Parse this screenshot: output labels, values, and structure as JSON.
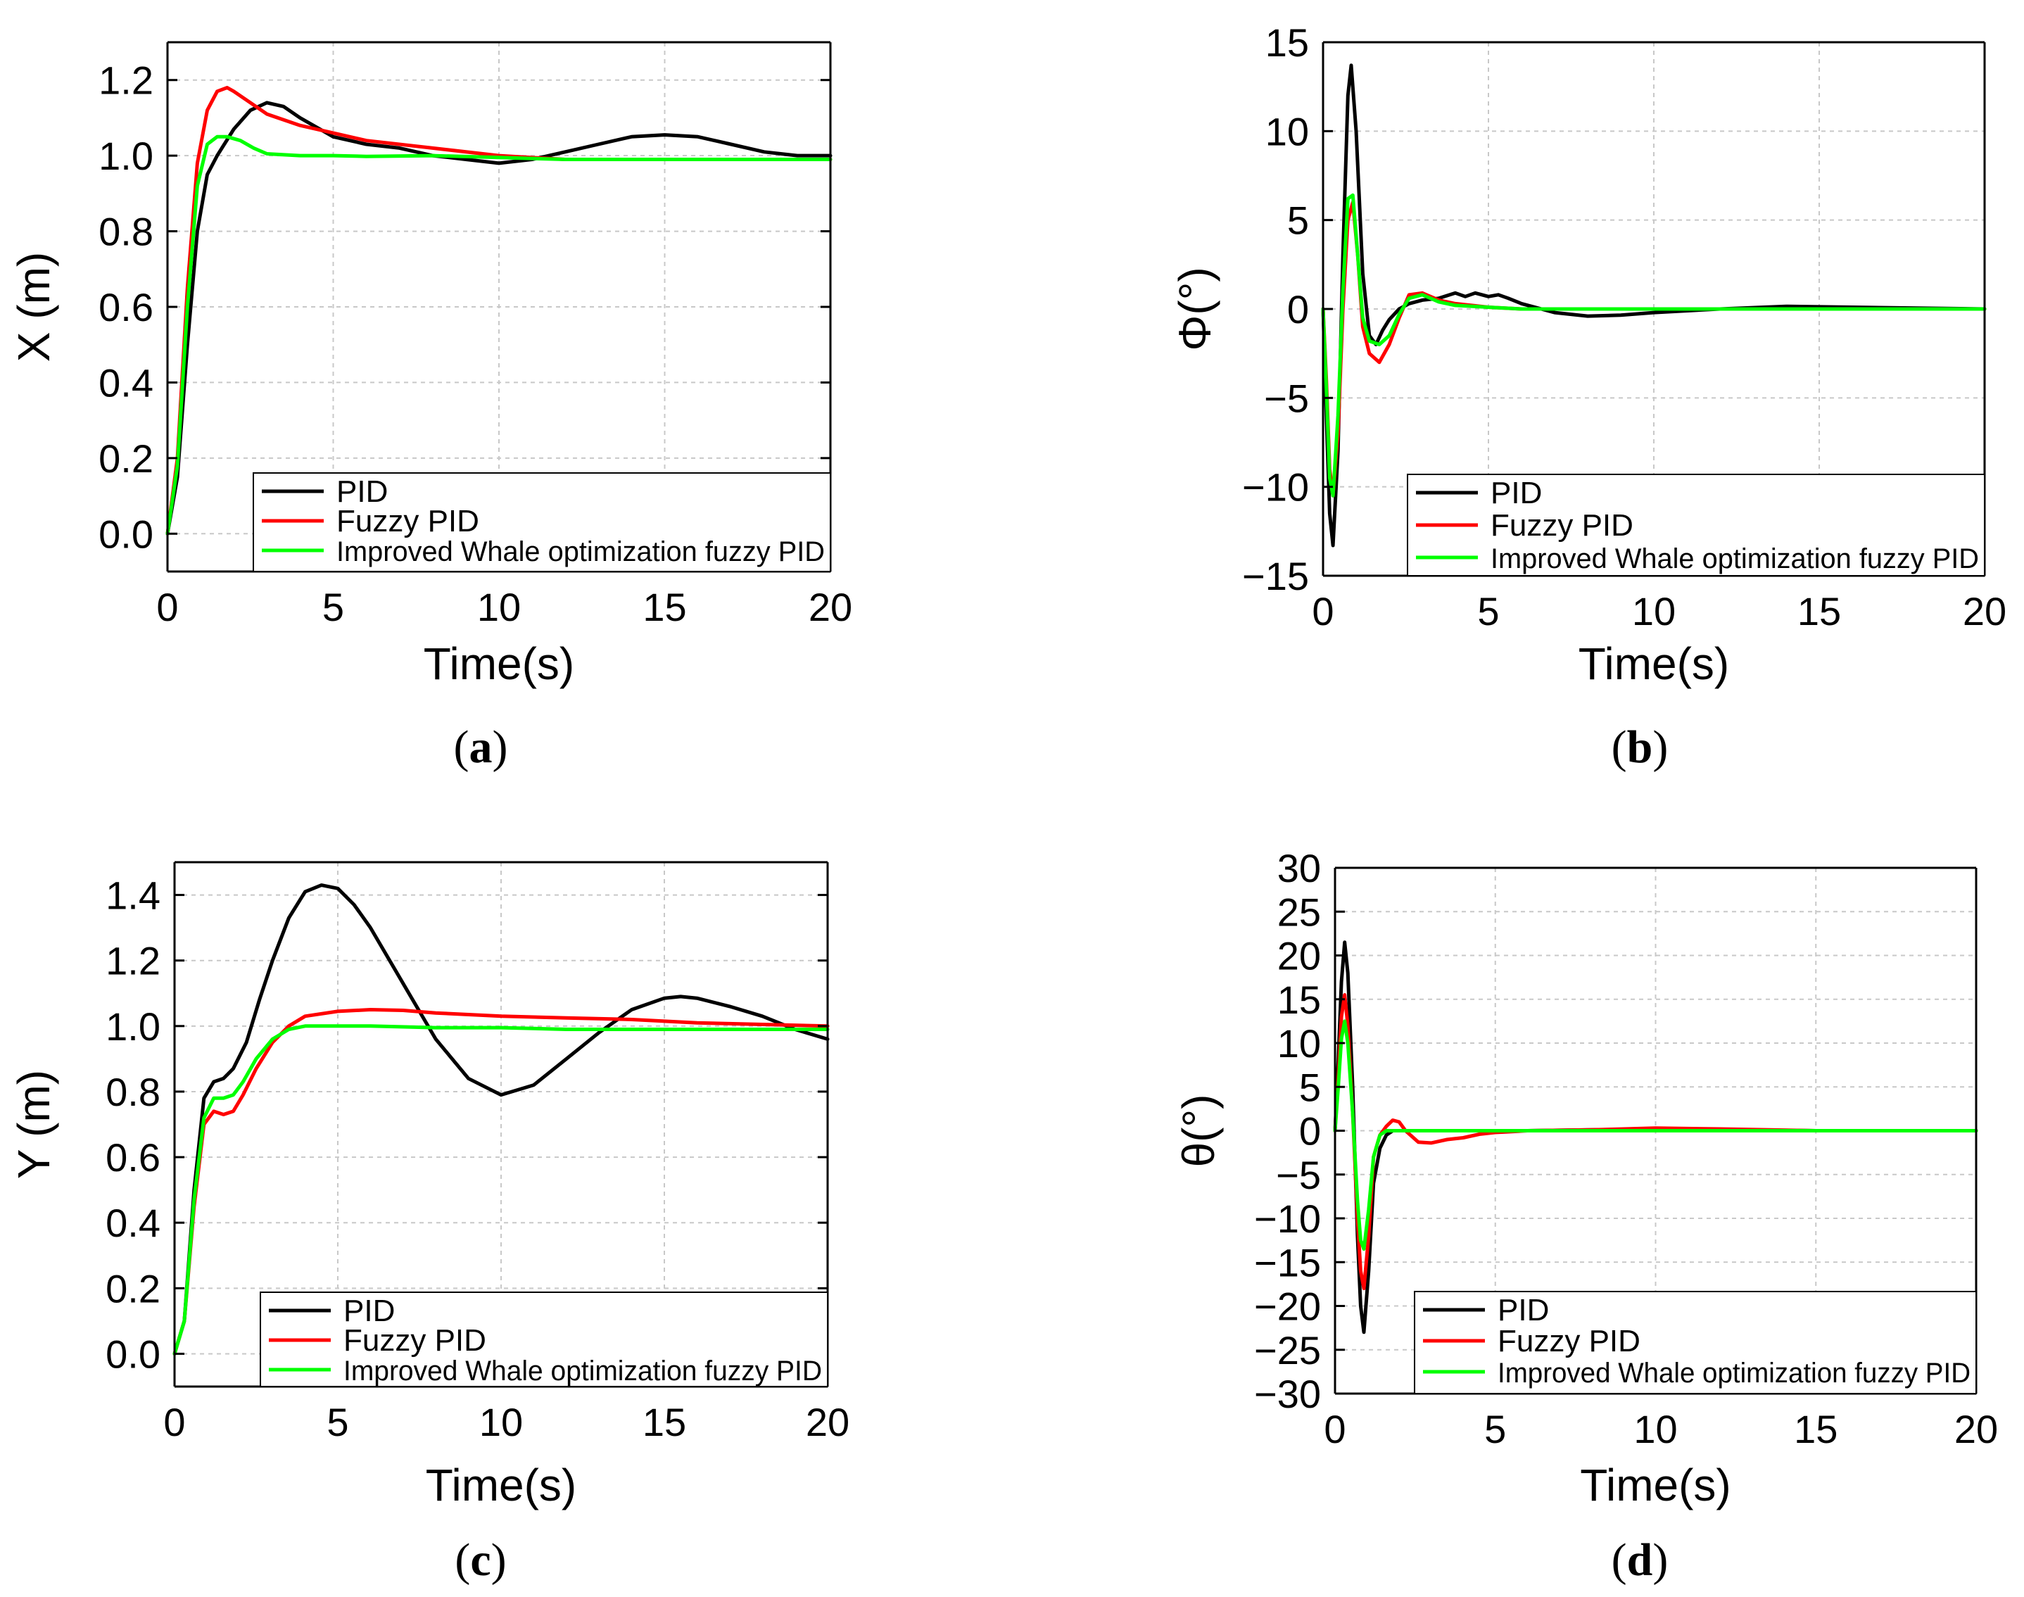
{
  "chart_data": [
    {
      "id": "a",
      "type": "line",
      "caption": {
        "open": "(",
        "letter": "a",
        "close": ")"
      },
      "xlabel": "Time(s)",
      "ylabel": "X (m)",
      "xlim": [
        0,
        20
      ],
      "ylim": [
        -0.1,
        1.3
      ],
      "xticks": [
        0,
        5,
        10,
        15,
        20
      ],
      "yticks": [
        0.0,
        0.2,
        0.4,
        0.6,
        0.8,
        1.0,
        1.2
      ],
      "ytick_labels": [
        "0.0",
        "0.2",
        "0.4",
        "0.6",
        "0.8",
        "1.0",
        "1.2"
      ],
      "xtick_labels": [
        "0",
        "5",
        "10",
        "15",
        "20"
      ],
      "grid": true,
      "legend": [
        "PID",
        "Fuzzy PID",
        "Improved Whale optimization fuzzy PID"
      ],
      "series": [
        {
          "name": "PID",
          "color": "#000000",
          "x": [
            0,
            0.3,
            0.6,
            0.9,
            1.2,
            1.5,
            2.0,
            2.5,
            3.0,
            3.5,
            4.0,
            5.0,
            6.0,
            7.0,
            8.0,
            9.0,
            10.0,
            11.0,
            12.0,
            13.0,
            14.0,
            15.0,
            16.0,
            17.0,
            18.0,
            19.0,
            20.0
          ],
          "y": [
            0.0,
            0.15,
            0.5,
            0.8,
            0.95,
            1.0,
            1.07,
            1.12,
            1.14,
            1.13,
            1.1,
            1.05,
            1.03,
            1.02,
            1.0,
            0.99,
            0.98,
            0.99,
            1.01,
            1.03,
            1.05,
            1.055,
            1.05,
            1.03,
            1.01,
            1.0,
            1.0
          ]
        },
        {
          "name": "Fuzzy PID",
          "color": "#ff0000",
          "x": [
            0,
            0.3,
            0.6,
            0.9,
            1.2,
            1.5,
            1.8,
            2.0,
            2.5,
            3.0,
            4.0,
            5.0,
            6.0,
            8.0,
            10.0,
            12.0,
            14.0,
            16.0,
            18.0,
            20.0
          ],
          "y": [
            0.0,
            0.2,
            0.65,
            0.98,
            1.12,
            1.17,
            1.18,
            1.17,
            1.14,
            1.11,
            1.08,
            1.06,
            1.04,
            1.02,
            1.0,
            0.99,
            0.99,
            0.99,
            0.99,
            0.99
          ]
        },
        {
          "name": "Improved Whale optimization fuzzy PID",
          "color": "#00ff00",
          "x": [
            0,
            0.3,
            0.6,
            0.9,
            1.2,
            1.5,
            1.8,
            2.2,
            2.6,
            3.0,
            4.0,
            5.0,
            6.0,
            8.0,
            10.0,
            12.0,
            14.0,
            16.0,
            18.0,
            20.0
          ],
          "y": [
            0.0,
            0.18,
            0.6,
            0.92,
            1.03,
            1.05,
            1.05,
            1.04,
            1.02,
            1.005,
            1.0,
            1.0,
            0.998,
            1.0,
            0.995,
            0.99,
            0.99,
            0.99,
            0.99,
            0.99
          ]
        }
      ]
    },
    {
      "id": "b",
      "type": "line",
      "caption": {
        "open": "(",
        "letter": "b",
        "close": ")"
      },
      "xlabel": "Time(s)",
      "ylabel": "Φ(°)",
      "xlim": [
        0,
        20
      ],
      "ylim": [
        -15,
        15
      ],
      "xticks": [
        0,
        5,
        10,
        15,
        20
      ],
      "yticks": [
        -15,
        -10,
        -5,
        0,
        5,
        10,
        15
      ],
      "ytick_labels": [
        "−15",
        "−10",
        "−5",
        "0",
        "5",
        "10",
        "15"
      ],
      "xtick_labels": [
        "0",
        "5",
        "10",
        "15",
        "20"
      ],
      "grid": true,
      "legend": [
        "PID",
        "Fuzzy PID",
        "Improved Whale optimization fuzzy PID"
      ],
      "series": [
        {
          "name": "PID",
          "color": "#000000",
          "x": [
            0,
            0.1,
            0.2,
            0.3,
            0.45,
            0.6,
            0.75,
            0.85,
            1.0,
            1.2,
            1.4,
            1.6,
            1.8,
            2.0,
            2.3,
            2.6,
            3.0,
            3.5,
            4.0,
            4.3,
            4.6,
            5.0,
            5.3,
            5.6,
            6.0,
            7.0,
            8.0,
            9.0,
            10.0,
            12.0,
            14.0,
            16.0,
            18.0,
            20.0
          ],
          "y": [
            0,
            -6,
            -11.5,
            -13.3,
            -8,
            3,
            12,
            13.7,
            10,
            2,
            -1.5,
            -2,
            -1.2,
            -0.6,
            0,
            0.3,
            0.5,
            0.6,
            0.9,
            0.7,
            0.9,
            0.7,
            0.8,
            0.6,
            0.3,
            -0.2,
            -0.4,
            -0.35,
            -0.2,
            0,
            0.15,
            0.1,
            0.05,
            0
          ]
        },
        {
          "name": "Fuzzy PID",
          "color": "#ff0000",
          "x": [
            0,
            0.1,
            0.2,
            0.3,
            0.45,
            0.6,
            0.75,
            0.9,
            1.05,
            1.2,
            1.4,
            1.7,
            2.0,
            2.3,
            2.6,
            3.0,
            3.5,
            4.0,
            5.0,
            6.0,
            8.0,
            10.0,
            15.0,
            20.0
          ],
          "y": [
            0,
            -4,
            -9,
            -10.5,
            -7,
            0,
            5,
            6,
            3,
            -1,
            -2.5,
            -3.0,
            -2,
            -0.5,
            0.8,
            0.9,
            0.5,
            0.3,
            0.1,
            0,
            0,
            0,
            0,
            0
          ]
        },
        {
          "name": "Improved Whale optimization fuzzy PID",
          "color": "#00ff00",
          "x": [
            0,
            0.1,
            0.2,
            0.3,
            0.45,
            0.6,
            0.75,
            0.9,
            1.05,
            1.2,
            1.4,
            1.7,
            2.0,
            2.3,
            2.6,
            3.0,
            3.5,
            4.0,
            5.0,
            6.0,
            8.0,
            10.0,
            15.0,
            20.0
          ],
          "y": [
            0,
            -4.5,
            -9.5,
            -10.5,
            -6,
            1,
            6.2,
            6.4,
            3,
            -0.5,
            -1.8,
            -2.0,
            -1.5,
            -0.3,
            0.6,
            0.8,
            0.4,
            0.2,
            0.1,
            0,
            0,
            0,
            0,
            0
          ]
        }
      ]
    },
    {
      "id": "c",
      "type": "line",
      "caption": {
        "open": "(",
        "letter": "c",
        "close": ")"
      },
      "xlabel": "Time(s)",
      "ylabel": "Y (m)",
      "xlim": [
        0,
        20
      ],
      "ylim": [
        -0.1,
        1.5
      ],
      "xticks": [
        0,
        5,
        10,
        15,
        20
      ],
      "yticks": [
        0.0,
        0.2,
        0.4,
        0.6,
        0.8,
        1.0,
        1.2,
        1.4
      ],
      "ytick_labels": [
        "0.0",
        "0.2",
        "0.4",
        "0.6",
        "0.8",
        "1.0",
        "1.2",
        "1.4"
      ],
      "xtick_labels": [
        "0",
        "5",
        "10",
        "15",
        "20"
      ],
      "grid": true,
      "legend": [
        "PID",
        "Fuzzy PID",
        "Improved Whale optimization fuzzy PID"
      ],
      "series": [
        {
          "name": "PID",
          "color": "#000000",
          "x": [
            0,
            0.3,
            0.6,
            0.9,
            1.2,
            1.5,
            1.8,
            2.2,
            2.6,
            3.0,
            3.5,
            4.0,
            4.5,
            5.0,
            5.5,
            6.0,
            7.0,
            8.0,
            9.0,
            10.0,
            11.0,
            12.0,
            13.0,
            14.0,
            15.0,
            15.5,
            16.0,
            17.0,
            18.0,
            19.0,
            20.0
          ],
          "y": [
            0.0,
            0.1,
            0.5,
            0.78,
            0.83,
            0.84,
            0.87,
            0.95,
            1.08,
            1.2,
            1.33,
            1.41,
            1.43,
            1.42,
            1.37,
            1.3,
            1.13,
            0.96,
            0.84,
            0.79,
            0.82,
            0.9,
            0.98,
            1.05,
            1.085,
            1.09,
            1.085,
            1.06,
            1.03,
            0.99,
            0.96
          ]
        },
        {
          "name": "Fuzzy PID",
          "color": "#ff0000",
          "x": [
            0,
            0.3,
            0.6,
            0.9,
            1.2,
            1.5,
            1.8,
            2.1,
            2.5,
            3.0,
            3.5,
            4.0,
            5.0,
            6.0,
            7.0,
            8.0,
            10.0,
            12.0,
            14.0,
            16.0,
            18.0,
            20.0
          ],
          "y": [
            0.0,
            0.1,
            0.45,
            0.7,
            0.74,
            0.73,
            0.74,
            0.79,
            0.87,
            0.95,
            1.0,
            1.03,
            1.045,
            1.05,
            1.048,
            1.04,
            1.03,
            1.025,
            1.02,
            1.01,
            1.005,
            1.0
          ]
        },
        {
          "name": "Improved Whale optimization fuzzy PID",
          "color": "#00ff00",
          "x": [
            0,
            0.3,
            0.6,
            0.9,
            1.2,
            1.5,
            1.8,
            2.1,
            2.5,
            3.0,
            3.5,
            4.0,
            5.0,
            6.0,
            8.0,
            10.0,
            12.0,
            14.0,
            16.0,
            18.0,
            20.0
          ],
          "y": [
            0.0,
            0.1,
            0.47,
            0.72,
            0.78,
            0.78,
            0.79,
            0.83,
            0.9,
            0.96,
            0.99,
            1.0,
            1.0,
            1.0,
            0.995,
            0.995,
            0.99,
            0.99,
            0.99,
            0.99,
            0.99
          ]
        }
      ]
    },
    {
      "id": "d",
      "type": "line",
      "caption": {
        "open": "(",
        "letter": "d",
        "close": ")"
      },
      "xlabel": "Time(s)",
      "ylabel": "θ(°)",
      "xlim": [
        0,
        20
      ],
      "ylim": [
        -30,
        30
      ],
      "xticks": [
        0,
        5,
        10,
        15,
        20
      ],
      "yticks": [
        -30,
        -25,
        -20,
        -15,
        -10,
        -5,
        0,
        5,
        10,
        15,
        20,
        25,
        30
      ],
      "ytick_labels": [
        "−30",
        "−25",
        "−20",
        "−15",
        "−10",
        "−5",
        "0",
        "5",
        "10",
        "15",
        "20",
        "25",
        "30"
      ],
      "xtick_labels": [
        "0",
        "5",
        "10",
        "15",
        "20"
      ],
      "grid": true,
      "legend": [
        "PID",
        "Fuzzy PID",
        "Improved Whale optimization fuzzy PID"
      ],
      "series": [
        {
          "name": "PID",
          "color": "#000000",
          "x": [
            0,
            0.1,
            0.2,
            0.3,
            0.4,
            0.55,
            0.7,
            0.8,
            0.9,
            1.05,
            1.2,
            1.4,
            1.6,
            1.8,
            2.0,
            2.5,
            3.0,
            4.0,
            6.0,
            10.0,
            15.0,
            20.0
          ],
          "y": [
            0,
            8,
            17,
            21.5,
            18,
            5,
            -12,
            -20,
            -23,
            -16,
            -6,
            -2,
            -0.5,
            0,
            0,
            0,
            0,
            0,
            0,
            0.2,
            0,
            0
          ]
        },
        {
          "name": "Fuzzy PID",
          "color": "#ff0000",
          "x": [
            0,
            0.1,
            0.2,
            0.3,
            0.4,
            0.55,
            0.7,
            0.8,
            0.9,
            1.05,
            1.2,
            1.4,
            1.6,
            1.8,
            2.0,
            2.2,
            2.6,
            3.0,
            3.5,
            4.0,
            4.5,
            5.0,
            6.0,
            8.0,
            10.0,
            12.0,
            15.0,
            20.0
          ],
          "y": [
            0,
            6,
            13,
            15.5,
            12,
            2,
            -10,
            -16,
            -18,
            -12,
            -3,
            -0.5,
            0.5,
            1.2,
            1.0,
            0,
            -1.3,
            -1.4,
            -1.0,
            -0.8,
            -0.4,
            -0.2,
            0,
            0.1,
            0.3,
            0.2,
            0,
            0
          ]
        },
        {
          "name": "Improved Whale optimization fuzzy PID",
          "color": "#00ff00",
          "x": [
            0,
            0.1,
            0.2,
            0.3,
            0.4,
            0.55,
            0.7,
            0.8,
            0.9,
            1.05,
            1.2,
            1.4,
            1.6,
            1.8,
            2.2,
            3.0,
            5.0,
            10.0,
            15.0,
            20.0
          ],
          "y": [
            0,
            5,
            10.5,
            12.5,
            10,
            2,
            -8,
            -12.5,
            -13.5,
            -9,
            -3,
            -0.5,
            0,
            0,
            0,
            0,
            0,
            0,
            0,
            0
          ]
        }
      ]
    }
  ]
}
